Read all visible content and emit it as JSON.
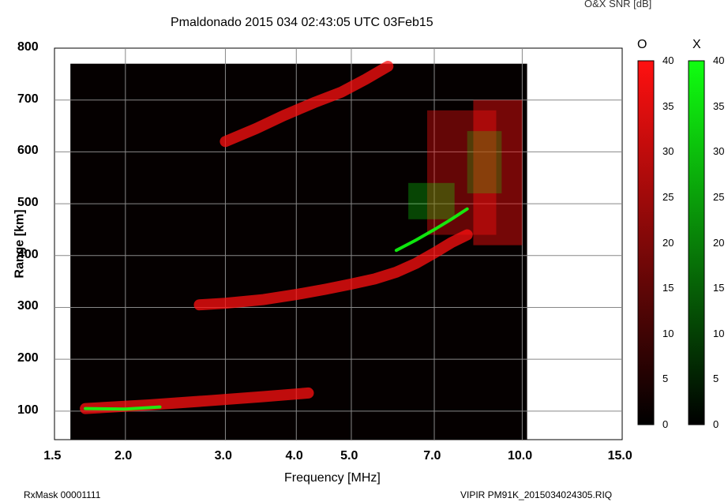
{
  "header": {
    "title": "Pmaldonado 2015 034 02:43:05 UTC        03Feb15",
    "colorbar_caption": "O&X SNR [dB]"
  },
  "footer": {
    "left": "RxMask 00001111",
    "right": "VIPIR  PM91K_2015034024305.RIQ"
  },
  "colors": {
    "o_mode": "#ff1010",
    "x_mode": "#10ff10",
    "background": "#000000"
  },
  "chart_data": {
    "type": "heatmap",
    "title": "Pmaldonado 2015 034 02:43:05 UTC        03Feb15",
    "xlabel": "Frequency [MHz]",
    "ylabel": "Range [km]",
    "x_scale": "log",
    "xlim": [
      1.5,
      15.0
    ],
    "ylim": [
      45,
      800
    ],
    "x_ticks": [
      1.5,
      2.0,
      3.0,
      4.0,
      5.0,
      7.0,
      10.0,
      15.0
    ],
    "x_tick_labels": [
      "1.5",
      "2.0",
      "3.0",
      "4.0",
      "5.0",
      "7.0",
      "10.0",
      "15.0"
    ],
    "y_ticks": [
      100,
      200,
      300,
      400,
      500,
      600,
      700,
      800
    ],
    "y_tick_labels": [
      "100",
      "200",
      "300",
      "400",
      "500",
      "600",
      "700",
      "800"
    ],
    "grid": true,
    "data_extent": {
      "freq": [
        1.6,
        10.2
      ],
      "range": [
        45,
        770
      ]
    },
    "colorbars": [
      {
        "name": "O",
        "range": [
          0,
          40
        ],
        "ticks": [
          0,
          5,
          10,
          15,
          20,
          25,
          30,
          35,
          40
        ],
        "color": "#ff1010"
      },
      {
        "name": "X",
        "range": [
          0,
          40
        ],
        "ticks": [
          0,
          5,
          10,
          15,
          20,
          25,
          30,
          35,
          40
        ],
        "color": "#10ff10"
      }
    ],
    "series": [
      {
        "name": "O",
        "traces": [
          {
            "freq": [
              1.7,
              2.2,
              2.8,
              3.5,
              4.2
            ],
            "range": [
              105,
              112,
              120,
              128,
              135
            ]
          },
          {
            "freq": [
              2.7,
              3.0,
              3.5,
              4.0,
              4.5,
              5.0,
              5.5,
              6.0,
              6.5,
              7.0,
              7.5,
              8.0
            ],
            "range": [
              305,
              308,
              315,
              325,
              335,
              345,
              355,
              368,
              385,
              405,
              425,
              440
            ]
          },
          {
            "freq": [
              3.0,
              3.4,
              3.8,
              4.3,
              4.8,
              5.3,
              5.8
            ],
            "range": [
              620,
              645,
              670,
              695,
              715,
              740,
              765
            ]
          }
        ],
        "patches": [
          {
            "freq": [
              6.8,
              9.0
            ],
            "range": [
              440,
              680
            ],
            "snr": 25
          },
          {
            "freq": [
              8.2,
              10.0
            ],
            "range": [
              420,
              700
            ],
            "snr": 30
          }
        ]
      },
      {
        "name": "X",
        "traces": [
          {
            "freq": [
              1.7,
              2.0,
              2.3
            ],
            "range": [
              105,
              104,
              108
            ]
          },
          {
            "freq": [
              6.0,
              6.5,
              7.0,
              7.5,
              8.0
            ],
            "range": [
              410,
              430,
              450,
              470,
              490
            ]
          }
        ],
        "patches": [
          {
            "freq": [
              6.3,
              7.6
            ],
            "range": [
              470,
              540
            ],
            "snr": 18
          },
          {
            "freq": [
              8.0,
              9.2
            ],
            "range": [
              520,
              640
            ],
            "snr": 15
          }
        ]
      }
    ]
  }
}
